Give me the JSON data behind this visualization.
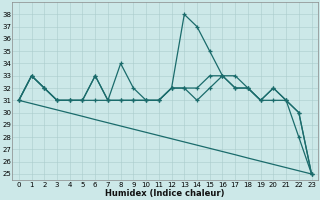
{
  "xlabel": "Humidex (Indice chaleur)",
  "background_color": "#cce8e8",
  "grid_color": "#aacccc",
  "line_color": "#1a6b6b",
  "xlim": [
    -0.5,
    23.5
  ],
  "ylim": [
    24.5,
    39
  ],
  "yticks": [
    25,
    26,
    27,
    28,
    29,
    30,
    31,
    32,
    33,
    34,
    35,
    36,
    37,
    38
  ],
  "xticks": [
    0,
    1,
    2,
    3,
    4,
    5,
    6,
    7,
    8,
    9,
    10,
    11,
    12,
    13,
    14,
    15,
    16,
    17,
    18,
    19,
    20,
    21,
    22,
    23
  ],
  "line_diag_x": [
    0,
    1,
    2,
    3,
    4,
    5,
    6,
    7,
    8,
    9,
    10,
    11,
    12,
    13,
    14,
    15,
    16,
    17,
    18,
    19,
    20,
    21,
    22,
    23
  ],
  "line_diag_y": [
    31.0,
    30.74,
    30.48,
    30.22,
    29.96,
    29.7,
    29.43,
    29.17,
    28.91,
    28.65,
    28.39,
    28.13,
    27.87,
    27.61,
    27.35,
    27.09,
    26.83,
    26.57,
    26.3,
    26.04,
    25.78,
    25.52,
    25.26,
    25.0
  ],
  "line2_x": [
    0,
    1,
    2,
    3,
    4,
    5,
    6,
    7,
    8,
    9,
    10,
    11,
    12,
    13,
    14,
    15,
    16,
    17,
    18,
    19,
    20,
    21,
    22,
    23
  ],
  "line2_y": [
    31,
    33,
    32,
    31,
    31,
    31,
    33,
    31,
    34,
    32,
    31,
    31,
    32,
    32,
    31,
    32,
    33,
    32,
    32,
    31,
    32,
    31,
    30,
    25
  ],
  "line3_x": [
    0,
    1,
    2,
    3,
    4,
    5,
    6,
    7,
    8,
    9,
    10,
    11,
    12,
    13,
    14,
    15,
    16,
    17,
    18,
    19,
    20,
    21,
    22,
    23
  ],
  "line3_y": [
    31,
    33,
    32,
    31,
    31,
    31,
    31,
    31,
    31,
    31,
    31,
    31,
    32,
    38,
    37,
    35,
    33,
    33,
    32,
    31,
    32,
    31,
    28,
    25
  ],
  "line4_x": [
    0,
    1,
    2,
    3,
    4,
    5,
    6,
    7,
    8,
    9,
    10,
    11,
    12,
    13,
    14,
    15,
    16,
    17,
    18,
    19,
    20,
    21,
    22,
    23
  ],
  "line4_y": [
    31,
    33,
    32,
    31,
    31,
    31,
    33,
    31,
    31,
    31,
    31,
    31,
    32,
    32,
    32,
    33,
    33,
    32,
    32,
    31,
    31,
    31,
    30,
    25
  ]
}
